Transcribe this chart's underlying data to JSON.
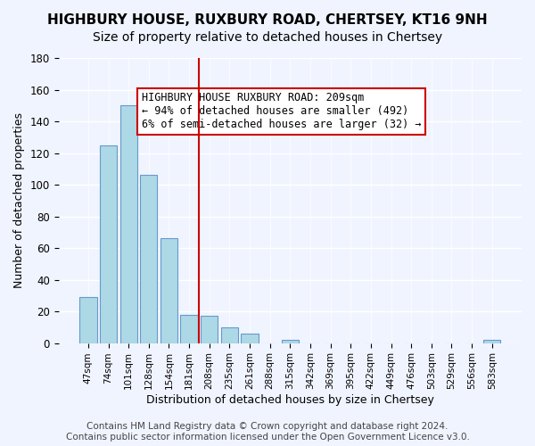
{
  "title": "HIGHBURY HOUSE, RUXBURY ROAD, CHERTSEY, KT16 9NH",
  "subtitle": "Size of property relative to detached houses in Chertsey",
  "xlabel": "Distribution of detached houses by size in Chertsey",
  "ylabel": "Number of detached properties",
  "bar_labels": [
    "47sqm",
    "74sqm",
    "101sqm",
    "128sqm",
    "154sqm",
    "181sqm",
    "208sqm",
    "235sqm",
    "261sqm",
    "288sqm",
    "315sqm",
    "342sqm",
    "369sqm",
    "395sqm",
    "422sqm",
    "449sqm",
    "476sqm",
    "503sqm",
    "529sqm",
    "556sqm",
    "583sqm"
  ],
  "bar_values": [
    29,
    125,
    150,
    106,
    66,
    18,
    17,
    10,
    6,
    0,
    2,
    0,
    0,
    0,
    0,
    0,
    0,
    0,
    0,
    0,
    2
  ],
  "bar_color": "#add8e6",
  "bar_edge_color": "#6699cc",
  "vline_x": 6,
  "vline_color": "#cc0000",
  "annotation_text": "HIGHBURY HOUSE RUXBURY ROAD: 209sqm\n← 94% of detached houses are smaller (492)\n6% of semi-detached houses are larger (32) →",
  "annotation_box_color": "#ffffff",
  "annotation_box_edge": "#cc0000",
  "ylim": [
    0,
    180
  ],
  "yticks": [
    0,
    20,
    40,
    60,
    80,
    100,
    120,
    140,
    160,
    180
  ],
  "footer1": "Contains HM Land Registry data © Crown copyright and database right 2024.",
  "footer2": "Contains public sector information licensed under the Open Government Licence v3.0.",
  "bg_color": "#f0f4ff",
  "grid_color": "#ffffff",
  "title_fontsize": 11,
  "subtitle_fontsize": 10,
  "label_fontsize": 9,
  "annotation_fontsize": 8.5,
  "footer_fontsize": 7.5
}
